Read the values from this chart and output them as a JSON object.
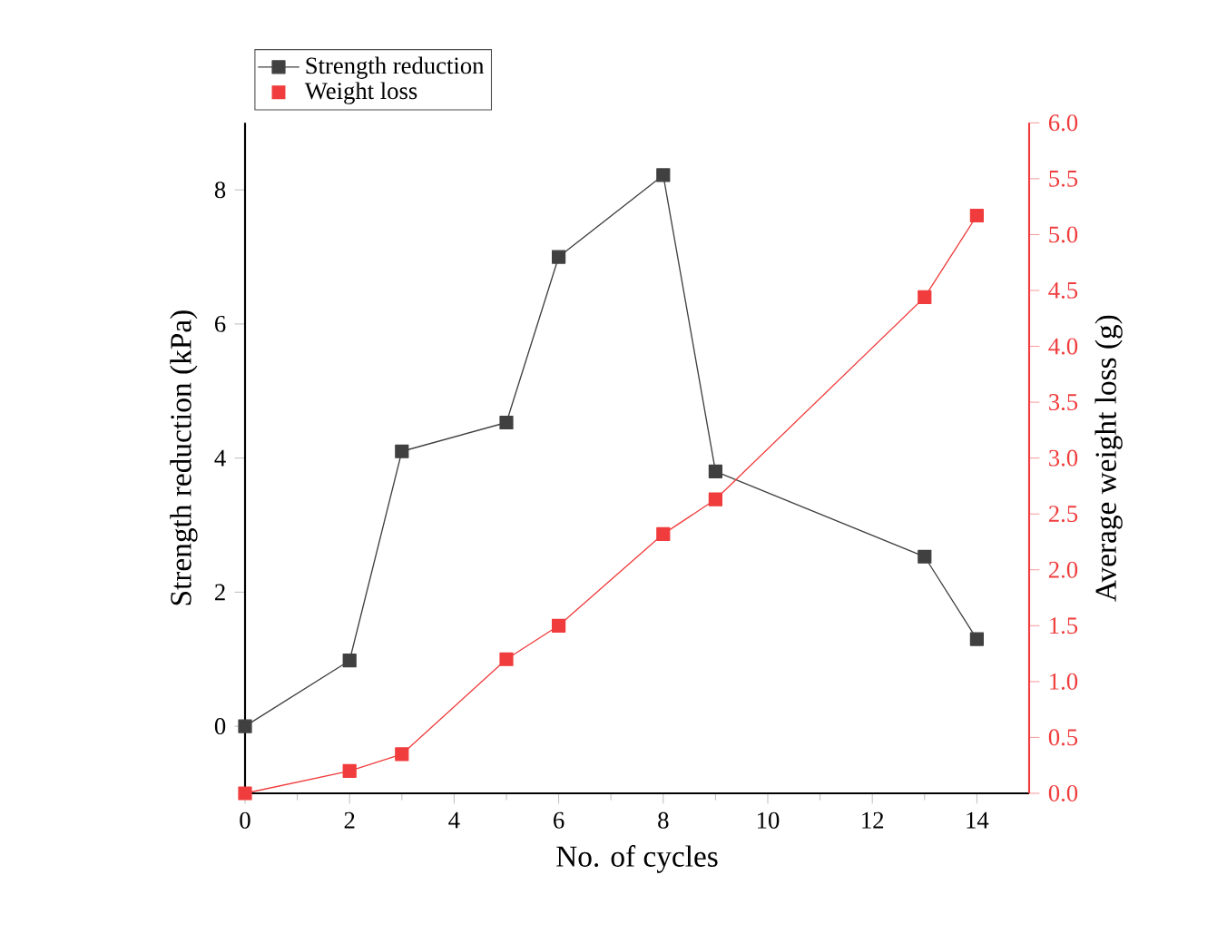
{
  "chart_data": {
    "type": "line",
    "xlabel": "No. of cycles",
    "ylabel": "Strength reduction (kPa)",
    "y2label": "Average weight loss (g)",
    "x": [
      0,
      2,
      3,
      5,
      6,
      8,
      9,
      13,
      14
    ],
    "xlim": [
      0,
      15
    ],
    "xticks": [
      0,
      2,
      4,
      6,
      8,
      10,
      12,
      14
    ],
    "ylim": [
      -1,
      9
    ],
    "yticks": [
      0,
      2,
      4,
      6,
      8
    ],
    "y2lim": [
      0,
      6
    ],
    "y2ticks": [
      {
        "value": 0,
        "label": "0.0"
      },
      {
        "value": 0.5,
        "label": "0.5"
      },
      {
        "value": 1,
        "label": "1.0"
      },
      {
        "value": 1.5,
        "label": "1.5"
      },
      {
        "value": 2,
        "label": "2.0"
      },
      {
        "value": 2.5,
        "label": "2.5"
      },
      {
        "value": 3,
        "label": "3.0"
      },
      {
        "value": 3.5,
        "label": "3.5"
      },
      {
        "value": 4,
        "label": "4.0"
      },
      {
        "value": 4.5,
        "label": "4.5"
      },
      {
        "value": 5,
        "label": "5.0"
      },
      {
        "value": 5.5,
        "label": "5.5"
      },
      {
        "value": 6,
        "label": "6.0"
      }
    ],
    "legend": "top left",
    "marker": "square",
    "line_style": "solid",
    "series": [
      {
        "name": "Strength reduction",
        "color": "#404040",
        "values": [
          0,
          0.98,
          4.1,
          4.53,
          7.0,
          8.22,
          3.8,
          2.53,
          1.3
        ]
      },
      {
        "name": "Weight loss",
        "color": "#f03c3c",
        "axis": "y2",
        "values": [
          0,
          0.2,
          0.35,
          1.2,
          1.5,
          2.32,
          2.63,
          4.44,
          5.17
        ]
      }
    ]
  }
}
